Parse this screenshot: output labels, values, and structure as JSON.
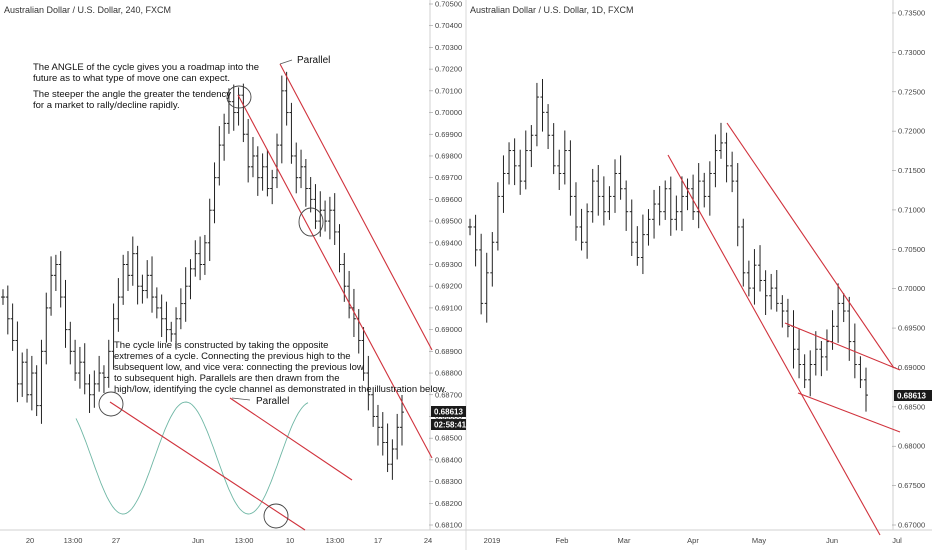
{
  "chart_data": [
    {
      "type": "ohlc",
      "symbol": "Australian Dollar / U.S. Dollar, 240, FXCM",
      "ylim": [
        0.681,
        0.705
      ],
      "y_ticks": [
        "0.70500",
        "0.70400",
        "0.70300",
        "0.70200",
        "0.70100",
        "0.70000",
        "0.69900",
        "0.69800",
        "0.69700",
        "0.69600",
        "0.69500",
        "0.69400",
        "0.69300",
        "0.69200",
        "0.69100",
        "0.69000",
        "0.68900",
        "0.68800",
        "0.68700",
        "0.68600",
        "0.68500",
        "0.68400",
        "0.68300",
        "0.68200",
        "0.68100"
      ],
      "x_ticks": [
        "20",
        "13:00",
        "27",
        "Jun",
        "13:00",
        "10",
        "13:00",
        "17",
        "24"
      ],
      "last_price": "0.68613",
      "countdown": "02:58:41",
      "bars_close": [
        0.6915,
        0.6905,
        0.6895,
        0.6875,
        0.6885,
        0.687,
        0.688,
        0.6865,
        0.689,
        0.691,
        0.6925,
        0.693,
        0.6915,
        0.69,
        0.689,
        0.688,
        0.6885,
        0.6875,
        0.687,
        0.6875,
        0.688,
        0.6878,
        0.689,
        0.6905,
        0.6915,
        0.693,
        0.6925,
        0.6935,
        0.692,
        0.6918,
        0.6925,
        0.6915,
        0.691,
        0.6905,
        0.69,
        0.6898,
        0.6905,
        0.6912,
        0.692,
        0.6928,
        0.6935,
        0.693,
        0.694,
        0.6955,
        0.697,
        0.6985,
        0.6995,
        0.7005,
        0.7,
        0.7008,
        0.699,
        0.6975,
        0.698,
        0.697,
        0.6975,
        0.6965,
        0.697,
        0.6985,
        0.701,
        0.7,
        0.698,
        0.697,
        0.6975,
        0.6965,
        0.696,
        0.695,
        0.6955,
        0.695,
        0.6955,
        0.6945,
        0.693,
        0.692,
        0.691,
        0.6905,
        0.6895,
        0.688,
        0.687,
        0.686,
        0.6855,
        0.6848,
        0.6838,
        0.6845,
        0.6855,
        0.6862
      ],
      "annotations": {
        "angle_title": "The ANGLE of the cycle gives you a roadmap into the future as to what type of move one can expect.",
        "angle_body": "The steeper the angle the greater the tendency for a market to rally/decline rapidly.",
        "cycle_note": "The cycle line is constructed by taking the opposite extremes of a cycle. Connecting the previous high to the subsequent low, and vice vera: connecting the previous low to subsequent high. Parallels are then drawn from the high/low, identifying the cycle channel as demonstrated in the illustration below.",
        "parallel_top": "Parallel",
        "parallel_bottom": "Parallel"
      }
    },
    {
      "type": "ohlc",
      "symbol": "Australian Dollar / U.S. Dollar, 1D, FXCM",
      "ylim": [
        0.669,
        0.736
      ],
      "y_ticks": [
        "0.73500",
        "0.73000",
        "0.72500",
        "0.72000",
        "0.71500",
        "0.71000",
        "0.70500",
        "0.70000",
        "0.69500",
        "0.69000",
        "0.68500",
        "0.68000",
        "0.67500",
        "0.67000"
      ],
      "x_ticks": [
        "2019",
        "Feb",
        "Mar",
        "Apr",
        "May",
        "Jun",
        "Jul"
      ],
      "last_price": "0.68613",
      "bars_close": [
        0.708,
        0.705,
        0.698,
        0.702,
        0.706,
        0.712,
        0.715,
        0.718,
        0.716,
        0.714,
        0.718,
        0.72,
        0.725,
        0.723,
        0.72,
        0.716,
        0.715,
        0.718,
        0.712,
        0.708,
        0.706,
        0.71,
        0.714,
        0.712,
        0.71,
        0.712,
        0.715,
        0.713,
        0.71,
        0.706,
        0.704,
        0.707,
        0.709,
        0.711,
        0.71,
        0.713,
        0.709,
        0.71,
        0.712,
        0.713,
        0.71,
        0.714,
        0.712,
        0.715,
        0.718,
        0.719,
        0.716,
        0.714,
        0.708,
        0.702,
        0.7,
        0.703,
        0.701,
        0.699,
        0.7,
        0.698,
        0.697,
        0.695,
        0.692,
        0.69,
        0.688,
        0.69,
        0.692,
        0.691,
        0.693,
        0.695,
        0.698,
        0.697,
        0.693,
        0.69,
        0.688,
        0.686
      ]
    }
  ]
}
